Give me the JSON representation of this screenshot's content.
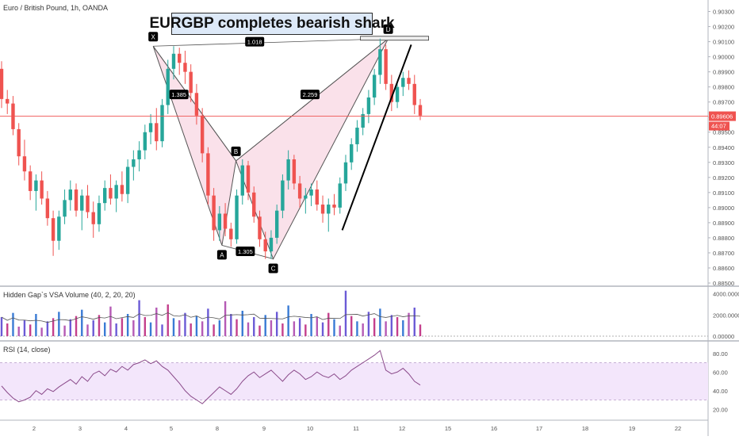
{
  "header": {
    "symbol_label": "Euro / British Pound, 1h, OANDA",
    "annotation_title": "EURGBP completes bearish shark"
  },
  "colors": {
    "candle_up": "#26a69a",
    "candle_down": "#ef5350",
    "pattern_fill": "#f8d7e3",
    "pattern_stroke": "#555555",
    "rsi_line": "#8a4a8a",
    "rsi_band": "#f3e6fb",
    "price_line": "#ef5350",
    "label_bg": "#000000"
  },
  "chart_data": [
    {
      "type": "candlestick",
      "title": "Euro / British Pound, 1h, OANDA",
      "ylim": [
        0.885,
        0.9035
      ],
      "y_ticks": [
        "0.90300",
        "0.90200",
        "0.90100",
        "0.90000",
        "0.89900",
        "0.89800",
        "0.89700",
        "0.89600",
        "0.89500",
        "0.89400",
        "0.89300",
        "0.89200",
        "0.89100",
        "0.89000",
        "0.88900",
        "0.88800",
        "0.88700",
        "0.88600",
        "0.88500"
      ],
      "x_ticks": [
        "2",
        "3",
        "4",
        "5",
        "8",
        "9",
        "10",
        "11",
        "12",
        "15",
        "16",
        "17",
        "18",
        "19",
        "22"
      ],
      "current_price": {
        "value": 0.89606,
        "label": "0.89606",
        "countdown": "44:07"
      },
      "pattern_points": [
        {
          "name": "X",
          "x": "4.6",
          "y": 0.9007
        },
        {
          "name": "A",
          "x": "8.1",
          "y": 0.8875
        },
        {
          "name": "B",
          "x": "8.4",
          "y": 0.8931
        },
        {
          "name": "C",
          "x": "9.2",
          "y": 0.8866
        },
        {
          "name": "D",
          "x": "11.7",
          "y": 0.9012
        }
      ],
      "ratio_labels": [
        {
          "text": "1.018",
          "x": "8.8",
          "y": 0.901
        },
        {
          "text": "1.385",
          "x": "5.5",
          "y": 0.8975
        },
        {
          "text": "2.259",
          "x": "10.0",
          "y": 0.8975
        },
        {
          "text": "1.305",
          "x": "8.6",
          "y": 0.8871
        }
      ],
      "trendline": {
        "from": {
          "x": "10.7",
          "y": 0.8885
        },
        "to": {
          "x": "12.6",
          "y": 0.9008
        }
      },
      "candles": [
        [
          0.8992,
          0.8997,
          0.8966,
          0.8972
        ],
        [
          0.8972,
          0.8978,
          0.8962,
          0.8969
        ],
        [
          0.8969,
          0.8974,
          0.8948,
          0.8952
        ],
        [
          0.8952,
          0.8956,
          0.8928,
          0.8934
        ],
        [
          0.8934,
          0.8945,
          0.8918,
          0.8924
        ],
        [
          0.8924,
          0.8928,
          0.8905,
          0.8911
        ],
        [
          0.8911,
          0.8922,
          0.8898,
          0.8918
        ],
        [
          0.8918,
          0.8924,
          0.8902,
          0.8906
        ],
        [
          0.8906,
          0.8911,
          0.8888,
          0.8893
        ],
        [
          0.8893,
          0.8898,
          0.8868,
          0.8878
        ],
        [
          0.8878,
          0.8898,
          0.8872,
          0.8894
        ],
        [
          0.8894,
          0.8912,
          0.8889,
          0.8905
        ],
        [
          0.8905,
          0.8918,
          0.8898,
          0.8912
        ],
        [
          0.8912,
          0.8916,
          0.8894,
          0.8898
        ],
        [
          0.8898,
          0.8912,
          0.8885,
          0.8908
        ],
        [
          0.8908,
          0.8915,
          0.8893,
          0.8897
        ],
        [
          0.8897,
          0.8904,
          0.888,
          0.8889
        ],
        [
          0.8889,
          0.8908,
          0.8884,
          0.8903
        ],
        [
          0.8903,
          0.8918,
          0.8898,
          0.8913
        ],
        [
          0.8913,
          0.8922,
          0.8902,
          0.8906
        ],
        [
          0.8906,
          0.8918,
          0.8897,
          0.8915
        ],
        [
          0.8915,
          0.8924,
          0.8904,
          0.8909
        ],
        [
          0.8909,
          0.8932,
          0.8903,
          0.8927
        ],
        [
          0.8927,
          0.8938,
          0.8918,
          0.8932
        ],
        [
          0.8932,
          0.8944,
          0.8924,
          0.8938
        ],
        [
          0.8938,
          0.8955,
          0.8932,
          0.895
        ],
        [
          0.895,
          0.8962,
          0.8942,
          0.8956
        ],
        [
          0.8956,
          0.8966,
          0.8938,
          0.8944
        ],
        [
          0.8944,
          0.8972,
          0.894,
          0.8968
        ],
        [
          0.8968,
          0.8998,
          0.8962,
          0.8992
        ],
        [
          0.8992,
          0.9007,
          0.8985,
          0.9002
        ],
        [
          0.9002,
          0.9006,
          0.8988,
          0.8996
        ],
        [
          0.8996,
          0.9004,
          0.8982,
          0.899
        ],
        [
          0.899,
          0.8995,
          0.897,
          0.8976
        ],
        [
          0.8976,
          0.8982,
          0.8955,
          0.8961
        ],
        [
          0.8961,
          0.8966,
          0.893,
          0.8936
        ],
        [
          0.8936,
          0.894,
          0.8902,
          0.8908
        ],
        [
          0.8908,
          0.8913,
          0.8878,
          0.8885
        ],
        [
          0.8885,
          0.8901,
          0.8878,
          0.8896
        ],
        [
          0.8896,
          0.8903,
          0.8881,
          0.8886
        ],
        [
          0.8886,
          0.889,
          0.8874,
          0.8879
        ],
        [
          0.8879,
          0.8912,
          0.8876,
          0.8908
        ],
        [
          0.8908,
          0.8932,
          0.8902,
          0.8928
        ],
        [
          0.8928,
          0.8931,
          0.8905,
          0.891
        ],
        [
          0.891,
          0.8914,
          0.889,
          0.8894
        ],
        [
          0.8894,
          0.8898,
          0.8874,
          0.8879
        ],
        [
          0.8879,
          0.8884,
          0.8866,
          0.8871
        ],
        [
          0.8871,
          0.8885,
          0.8866,
          0.888
        ],
        [
          0.888,
          0.8902,
          0.8876,
          0.8898
        ],
        [
          0.8898,
          0.8922,
          0.8893,
          0.8918
        ],
        [
          0.8918,
          0.8938,
          0.8912,
          0.8932
        ],
        [
          0.8932,
          0.8935,
          0.8912,
          0.8916
        ],
        [
          0.8916,
          0.8921,
          0.89,
          0.8906
        ],
        [
          0.8906,
          0.8913,
          0.8896,
          0.8908
        ],
        [
          0.8908,
          0.8916,
          0.8901,
          0.8912
        ],
        [
          0.8912,
          0.8918,
          0.8898,
          0.8902
        ],
        [
          0.8902,
          0.8908,
          0.889,
          0.8896
        ],
        [
          0.8896,
          0.8906,
          0.8884,
          0.8902
        ],
        [
          0.8902,
          0.8909,
          0.8895,
          0.89
        ],
        [
          0.89,
          0.892,
          0.8896,
          0.8916
        ],
        [
          0.8916,
          0.8935,
          0.8911,
          0.893
        ],
        [
          0.893,
          0.8946,
          0.8925,
          0.8942
        ],
        [
          0.8942,
          0.8958,
          0.8937,
          0.8953
        ],
        [
          0.8953,
          0.8966,
          0.8948,
          0.8962
        ],
        [
          0.8962,
          0.8978,
          0.8956,
          0.8973
        ],
        [
          0.8973,
          0.8992,
          0.8968,
          0.8988
        ],
        [
          0.8988,
          0.9012,
          0.8982,
          0.9005
        ],
        [
          0.9005,
          0.9008,
          0.8978,
          0.8982
        ],
        [
          0.8982,
          0.8988,
          0.8964,
          0.897
        ],
        [
          0.897,
          0.8984,
          0.8966,
          0.898
        ],
        [
          0.898,
          0.899,
          0.8974,
          0.8986
        ],
        [
          0.8986,
          0.8991,
          0.8978,
          0.8982
        ],
        [
          0.8982,
          0.8988,
          0.8962,
          0.8968
        ],
        [
          0.8968,
          0.8972,
          0.8958,
          0.8961
        ]
      ]
    },
    {
      "type": "bar",
      "title": "Hidden Gap`s VSA Volume (40, 2, 20, 20)",
      "ylim": [
        0,
        4500
      ],
      "y_ticks": [
        "4000.00000",
        "2000.00000",
        "0.00000"
      ],
      "values": [
        1800,
        1200,
        2200,
        900,
        1500,
        1100,
        2100,
        800,
        1400,
        1700,
        2300,
        1000,
        1600,
        1900,
        2500,
        1100,
        1500,
        2000,
        1300,
        2800,
        1200,
        1700,
        2100,
        1500,
        3400,
        1800,
        1300,
        2700,
        1100,
        3000,
        1700,
        1500,
        2200,
        1200,
        1900,
        1400,
        2600,
        1100,
        1500,
        3300,
        2100,
        1600,
        2400,
        1300,
        1800,
        1000,
        2000,
        1500,
        2300,
        1200,
        2900,
        1400,
        1700,
        1100,
        2100,
        1800,
        1300,
        2200,
        1600,
        1000,
        4300,
        1900,
        1400,
        1200,
        2300,
        1700,
        2600,
        1400,
        2000,
        1800,
        1500,
        2200,
        2700,
        1100
      ]
    },
    {
      "type": "line",
      "title": "RSI (14, close)",
      "ylim": [
        10,
        90
      ],
      "y_ticks": [
        "80.00",
        "60.00",
        "40.00",
        "20.00"
      ],
      "band": [
        30,
        70
      ],
      "values": [
        45,
        38,
        32,
        28,
        30,
        33,
        40,
        36,
        42,
        39,
        44,
        48,
        52,
        47,
        55,
        50,
        58,
        61,
        56,
        63,
        60,
        66,
        62,
        68,
        70,
        73,
        69,
        72,
        66,
        62,
        55,
        48,
        40,
        34,
        30,
        26,
        32,
        38,
        44,
        40,
        36,
        42,
        50,
        56,
        60,
        54,
        58,
        62,
        56,
        50,
        57,
        62,
        58,
        52,
        55,
        60,
        56,
        54,
        58,
        52,
        56,
        62,
        66,
        70,
        74,
        78,
        83,
        62,
        58,
        60,
        64,
        58,
        50,
        46
      ]
    }
  ]
}
